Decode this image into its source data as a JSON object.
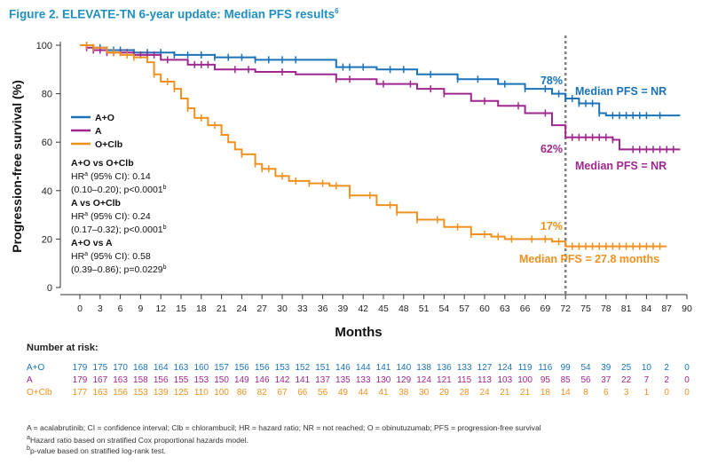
{
  "header": {
    "title": "Figure 2. ELEVATE-TN 6-year update: Median PFS results",
    "title_sup": "6"
  },
  "colors": {
    "A+O": "#1a73b8",
    "A": "#a0278f",
    "O+Clb": "#f0901e",
    "title": "#1f8fc2",
    "cutoff_line": "#808080"
  },
  "chart_data": {
    "type": "line",
    "subtype": "kaplan-meier step curves",
    "ylabel": "Progression-free survival (%)",
    "xlabel": "Months",
    "xlim": [
      0,
      90
    ],
    "ylim": [
      0,
      100
    ],
    "x_ticks": [
      0,
      3,
      6,
      9,
      12,
      15,
      18,
      21,
      24,
      27,
      30,
      33,
      36,
      39,
      42,
      45,
      48,
      51,
      54,
      57,
      60,
      63,
      66,
      69,
      72,
      75,
      78,
      81,
      84,
      87,
      90
    ],
    "y_ticks": [
      0,
      20,
      40,
      60,
      80,
      100
    ],
    "grid": false,
    "legend_position": "left-middle",
    "reference_line": {
      "x": 72,
      "style": "dotted",
      "color": "#808080"
    },
    "series": [
      {
        "name": "A+O",
        "color": "#1a73b8",
        "points": [
          [
            0,
            100
          ],
          [
            2,
            99
          ],
          [
            4,
            98
          ],
          [
            8,
            97
          ],
          [
            14,
            96
          ],
          [
            20,
            95
          ],
          [
            26,
            94
          ],
          [
            32,
            94
          ],
          [
            38,
            91
          ],
          [
            44,
            90
          ],
          [
            50,
            88
          ],
          [
            56,
            86
          ],
          [
            62,
            84
          ],
          [
            66,
            82
          ],
          [
            70,
            80
          ],
          [
            72,
            78
          ],
          [
            74,
            76
          ],
          [
            77,
            72
          ],
          [
            78,
            71
          ],
          [
            89,
            71
          ]
        ],
        "censor_marks": [
          1,
          2,
          3,
          4,
          5,
          6,
          8,
          10,
          12,
          14,
          16,
          18,
          20,
          22,
          24,
          26,
          28,
          30,
          32,
          39,
          40,
          42,
          46,
          48,
          52,
          56,
          59,
          63,
          66,
          69,
          71,
          72,
          73,
          74,
          75,
          76,
          77,
          79,
          80,
          81,
          82,
          83,
          84,
          86
        ]
      },
      {
        "name": "A",
        "color": "#a0278f",
        "points": [
          [
            0,
            100
          ],
          [
            1,
            99
          ],
          [
            2,
            98
          ],
          [
            4,
            97
          ],
          [
            8,
            96
          ],
          [
            12,
            94
          ],
          [
            16,
            92
          ],
          [
            20,
            90
          ],
          [
            26,
            89
          ],
          [
            32,
            88
          ],
          [
            38,
            86
          ],
          [
            44,
            84
          ],
          [
            50,
            82
          ],
          [
            54,
            80
          ],
          [
            58,
            77
          ],
          [
            62,
            75
          ],
          [
            66,
            72
          ],
          [
            70,
            67
          ],
          [
            72,
            62
          ],
          [
            76,
            62
          ],
          [
            79,
            61
          ],
          [
            80,
            57
          ],
          [
            89,
            57
          ]
        ],
        "censor_marks": [
          1,
          2,
          3,
          4,
          5,
          6,
          7,
          8,
          9,
          10,
          11,
          13,
          17,
          18,
          19,
          23,
          25,
          30,
          38,
          40,
          45,
          49,
          52,
          54,
          60,
          65,
          69,
          73,
          74,
          75,
          76,
          77,
          78,
          79,
          82,
          83,
          84,
          85,
          86,
          87,
          88
        ]
      },
      {
        "name": "O+Clb",
        "color": "#f0901e",
        "points": [
          [
            0,
            100
          ],
          [
            2,
            99
          ],
          [
            4,
            97
          ],
          [
            6,
            96
          ],
          [
            8,
            95
          ],
          [
            10,
            93
          ],
          [
            11,
            88
          ],
          [
            12,
            85
          ],
          [
            14,
            82
          ],
          [
            15,
            78
          ],
          [
            16,
            74
          ],
          [
            17,
            70
          ],
          [
            19,
            67
          ],
          [
            21,
            63
          ],
          [
            22,
            60
          ],
          [
            23,
            57
          ],
          [
            24,
            55
          ],
          [
            26,
            51
          ],
          [
            27,
            49
          ],
          [
            29,
            46
          ],
          [
            31,
            44
          ],
          [
            34,
            43
          ],
          [
            37,
            42
          ],
          [
            40,
            38
          ],
          [
            44,
            34
          ],
          [
            47,
            31
          ],
          [
            50,
            28
          ],
          [
            54,
            25
          ],
          [
            58,
            22
          ],
          [
            61,
            21
          ],
          [
            63,
            20
          ],
          [
            70,
            19
          ],
          [
            72,
            17
          ],
          [
            87,
            17
          ]
        ],
        "censor_marks": [
          1,
          2,
          5,
          7,
          8,
          11,
          13,
          14,
          16,
          18,
          20,
          24,
          26,
          27,
          28,
          30,
          32,
          34,
          36,
          38,
          40,
          43,
          46,
          47,
          50,
          53,
          56,
          58,
          60,
          62,
          64,
          67,
          69,
          71,
          73,
          74,
          75,
          76,
          77,
          78,
          79,
          80,
          81,
          82,
          83,
          84,
          85,
          86
        ]
      }
    ],
    "annotations": [
      {
        "text": "78%",
        "series": "A+O",
        "x": 72,
        "y": 78
      },
      {
        "text": "Median PFS = NR",
        "series": "A+O"
      },
      {
        "text": "62%",
        "series": "A",
        "x": 72,
        "y": 62
      },
      {
        "text": "Median PFS = NR",
        "series": "A"
      },
      {
        "text": "17%",
        "series": "O+Clb",
        "x": 72,
        "y": 17
      },
      {
        "text": "Median PFS = 27.8 months",
        "series": "O+Clb"
      }
    ],
    "stats_box": [
      {
        "heading": "A+O vs O+Clb",
        "hr_line": "HR",
        "hr_value": " (95% CI): 0.14",
        "ci_line": "(0.10–0.20); p<0.0001"
      },
      {
        "heading": "A vs O+Clb",
        "hr_line": "HR",
        "hr_value": " (95% CI): 0.24",
        "ci_line": "(0.17–0.32); p<0.0001"
      },
      {
        "heading": "A+O vs A",
        "hr_line": "HR",
        "hr_value": " (95% CI): 0.58",
        "ci_line": "(0.39–0.86); p=0.0229"
      }
    ],
    "footnote_marks": {
      "a": "a",
      "b": "b"
    },
    "at_risk": {
      "title": "Number at risk:",
      "rows": [
        {
          "label": "A+O",
          "color": "#1a73b8",
          "values": [
            179,
            175,
            170,
            168,
            164,
            163,
            160,
            157,
            156,
            156,
            153,
            152,
            151,
            146,
            144,
            141,
            140,
            138,
            136,
            133,
            127,
            124,
            119,
            116,
            99,
            54,
            39,
            25,
            10,
            2,
            0
          ]
        },
        {
          "label": "A",
          "color": "#a0278f",
          "values": [
            179,
            167,
            163,
            158,
            156,
            155,
            153,
            150,
            149,
            146,
            142,
            141,
            137,
            135,
            133,
            130,
            129,
            124,
            121,
            115,
            113,
            103,
            100,
            95,
            85,
            56,
            37,
            22,
            7,
            2,
            0
          ]
        },
        {
          "label": "O+Clb",
          "color": "#f0901e",
          "values": [
            177,
            163,
            156,
            153,
            139,
            125,
            110,
            100,
            86,
            82,
            67,
            66,
            56,
            49,
            44,
            41,
            38,
            30,
            29,
            28,
            24,
            21,
            21,
            18,
            14,
            8,
            6,
            3,
            1,
            0,
            0
          ]
        }
      ]
    }
  },
  "footer": {
    "line1": "A = acalabrutinib; CI = confidence interval; Clb = chlorambucil; HR = hazard ratio; NR = not reached; O = obinutuzumab; PFS = progression-free survival",
    "line2_mark": "a",
    "line2": "Hazard ratio based on stratified Cox proportional hazards model.",
    "line3_mark": "b",
    "line3": "p-value based on stratified log-rank test."
  }
}
